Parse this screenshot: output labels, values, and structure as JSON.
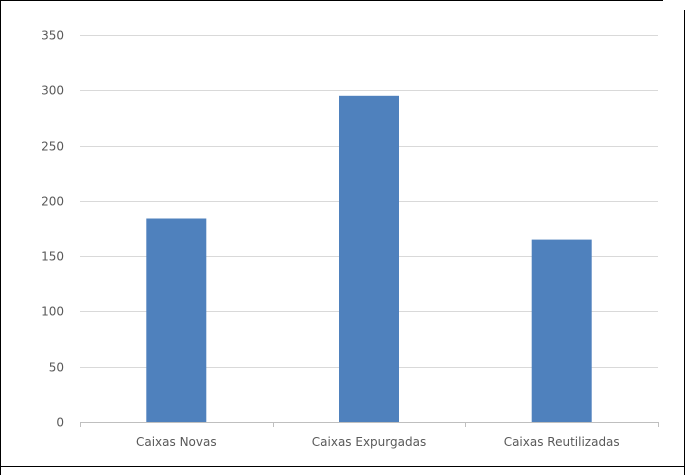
{
  "chart_data": {
    "type": "bar",
    "categories": [
      "Caixas Novas",
      "Caixas Expurgadas",
      "Caixas Reutilizadas"
    ],
    "values": [
      184,
      295,
      165
    ],
    "title": "",
    "xlabel": "",
    "ylabel": "",
    "ylim": [
      0,
      350
    ],
    "yticks": [
      0,
      50,
      100,
      150,
      200,
      250,
      300,
      350
    ],
    "grid": true,
    "legend": "none",
    "bar_color": "#4f81bd",
    "grid_color": "#d9d9d9",
    "axis_color": "#bfbfbf",
    "text_color": "#595959"
  }
}
